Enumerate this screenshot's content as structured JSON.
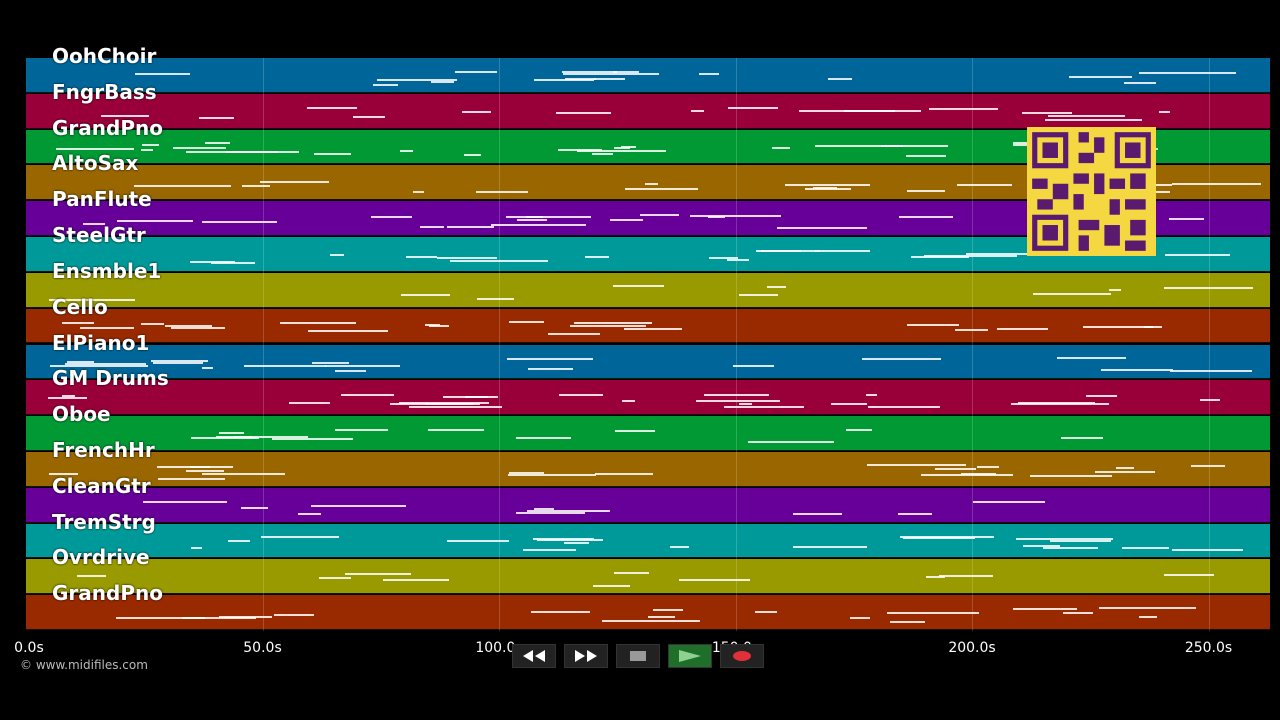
{
  "tracks": [
    {
      "label": "OohChoir",
      "color": "#006699"
    },
    {
      "label": "FngrBass",
      "color": "#99003a"
    },
    {
      "label": "GrandPno",
      "color": "#009933"
    },
    {
      "label": "AltoSax",
      "color": "#996600"
    },
    {
      "label": "PanFlute",
      "color": "#660099"
    },
    {
      "label": "SteelGtr",
      "color": "#009999"
    },
    {
      "label": "Ensmble1",
      "color": "#999900"
    },
    {
      "label": "Cello",
      "color": "#992a00"
    },
    {
      "label": "ElPiano1",
      "color": "#006699"
    },
    {
      "label": "GM Drums",
      "color": "#99003a"
    },
    {
      "label": "Oboe",
      "color": "#009933"
    },
    {
      "label": "FrenchHr",
      "color": "#996600"
    },
    {
      "label": "CleanGtr",
      "color": "#660099"
    },
    {
      "label": "TremStrg",
      "color": "#009999"
    },
    {
      "label": "Ovrdrive",
      "color": "#999900"
    },
    {
      "label": "GrandPno",
      "color": "#992a00"
    }
  ],
  "timeline": {
    "ticks": [
      "0.0s",
      "50.0s",
      "100.0s",
      "150.0s",
      "200.0s",
      "250.0s"
    ],
    "tick_seconds": [
      0,
      50,
      100,
      150,
      200,
      250
    ],
    "max_seconds": 263
  },
  "copyright": "© www.midifiles.com",
  "transport": {
    "rewind_icon": "rewind-icon",
    "forward_icon": "fast-forward-icon",
    "stop_icon": "stop-icon",
    "play_icon": "play-icon",
    "record_icon": "record-icon"
  },
  "colors": {
    "background": "#000000",
    "qr_background": "#f5d742",
    "qr_foreground": "#5a1a6e"
  }
}
